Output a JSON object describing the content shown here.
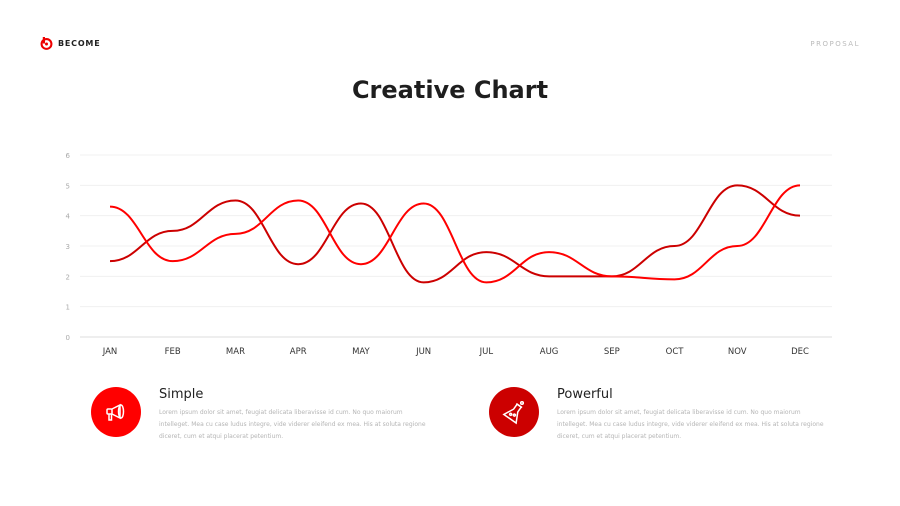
{
  "header": {
    "brand": "BECOME",
    "section": "PROPOSAL",
    "title": "Creative Chart"
  },
  "colors": {
    "accent": "#ff0000",
    "accent_dark": "#cc0000",
    "grid": "#f0f0f0"
  },
  "chart_data": {
    "type": "line",
    "categories": [
      "JAN",
      "FEB",
      "MAR",
      "APR",
      "MAY",
      "JUN",
      "JUL",
      "AUG",
      "SEP",
      "OCT",
      "NOV",
      "DEC"
    ],
    "ylim": [
      0,
      6
    ],
    "yticks": [
      0,
      1,
      2,
      3,
      4,
      5,
      6
    ],
    "grid": true,
    "smooth": true,
    "series": [
      {
        "color": "#cc0000",
        "values": [
          2.5,
          3.5,
          4.5,
          2.4,
          4.4,
          1.8,
          2.8,
          2.0,
          2.0,
          3.0,
          5.0,
          4.0
        ]
      },
      {
        "color": "#ff0000",
        "values": [
          4.3,
          2.5,
          3.4,
          4.5,
          2.4,
          4.4,
          1.8,
          2.8,
          2.0,
          1.9,
          3.0,
          5.0
        ]
      }
    ]
  },
  "features": [
    {
      "title": "Simple",
      "icon": "megaphone-icon",
      "color": "#ff0000",
      "text": "Lorem ipsum dolor sit amet, feugiat delicata liberavisse id cum. No quo maiorum intelleget. Mea cu case ludus integre, vide viderer eleifend ex mea. His at soluta regione diceret, cum et atqui placerat petentium."
    },
    {
      "title": "Powerful",
      "icon": "flask-icon",
      "color": "#cc0000",
      "text": "Lorem ipsum dolor sit amet, feugiat delicata liberavisse id cum. No quo maiorum intelleget. Mea cu case ludus integre, vide viderer eleifend ex mea. His at soluta regione diceret, cum et atqui placerat petentium."
    }
  ]
}
